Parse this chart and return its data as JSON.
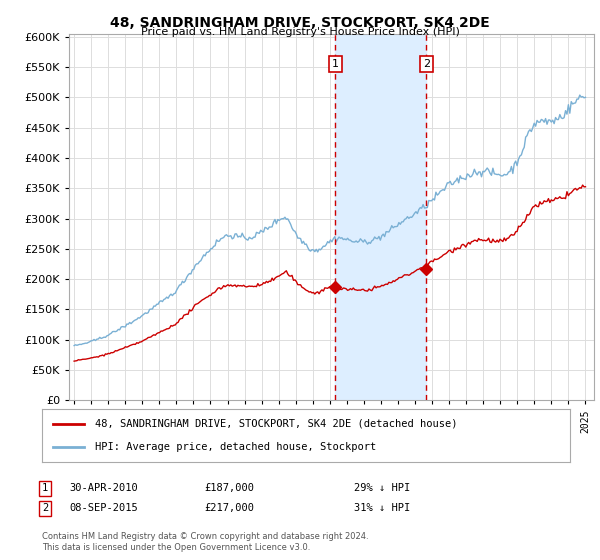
{
  "title": "48, SANDRINGHAM DRIVE, STOCKPORT, SK4 2DE",
  "subtitle": "Price paid vs. HM Land Registry's House Price Index (HPI)",
  "ylim": [
    0,
    600000
  ],
  "xlim_start": 1994.7,
  "xlim_end": 2025.5,
  "transaction1_date": 2010.33,
  "transaction1_price": 187000,
  "transaction1_label": "1",
  "transaction2_date": 2015.67,
  "transaction2_price": 217000,
  "transaction2_label": "2",
  "legend_line1": "48, SANDRINGHAM DRIVE, STOCKPORT, SK4 2DE (detached house)",
  "legend_line2": "HPI: Average price, detached house, Stockport",
  "table_row1_num": "1",
  "table_row1_date": "30-APR-2010",
  "table_row1_price": "£187,000",
  "table_row1_hpi": "29% ↓ HPI",
  "table_row2_num": "2",
  "table_row2_date": "08-SEP-2015",
  "table_row2_price": "£217,000",
  "table_row2_hpi": "31% ↓ HPI",
  "footer": "Contains HM Land Registry data © Crown copyright and database right 2024.\nThis data is licensed under the Open Government Licence v3.0.",
  "line_color_red": "#cc0000",
  "line_color_blue": "#7ab0d4",
  "shade_color": "#ddeeff",
  "vline_color": "#cc0000",
  "background_color": "#ffffff",
  "grid_color": "#dddddd"
}
